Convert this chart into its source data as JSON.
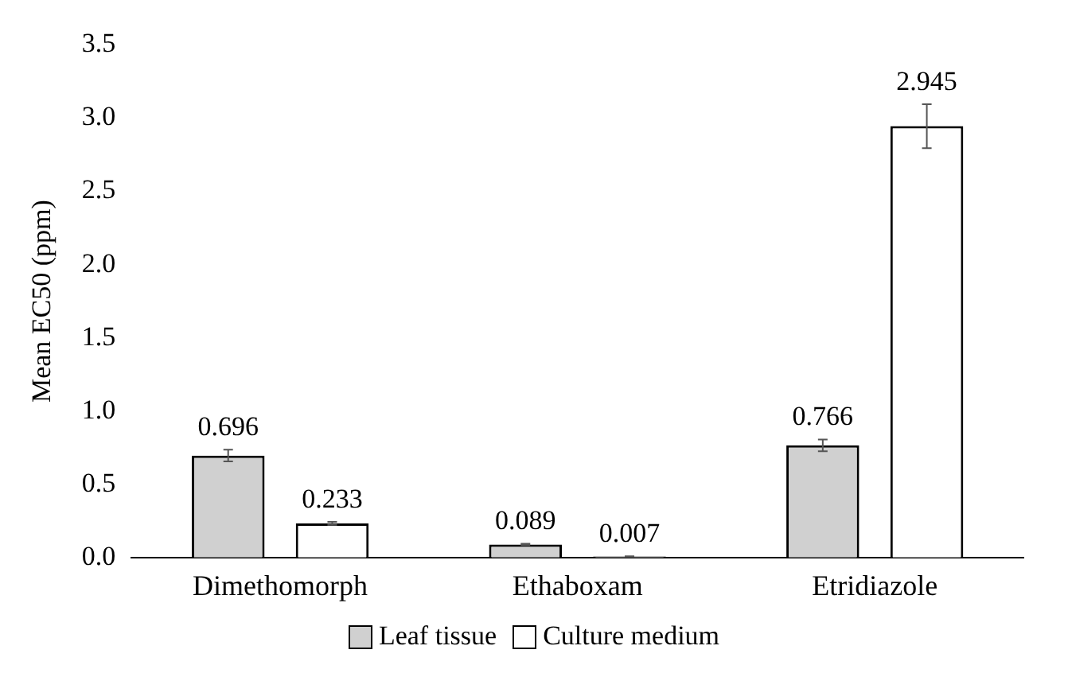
{
  "chart_data": {
    "type": "bar",
    "ylabel": "Mean EC50 (ppm)",
    "categories": [
      "Dimethomorph",
      "Ethaboxam",
      "Etridiazole"
    ],
    "series": [
      {
        "name": "Leaf tissue",
        "color": "#d0d0d0",
        "values": [
          0.696,
          0.089,
          0.766
        ],
        "errors": [
          0.04,
          0.005,
          0.04
        ]
      },
      {
        "name": "Culture medium",
        "color": "#ffffff",
        "values": [
          0.233,
          0.007,
          2.945
        ],
        "errors": [
          0.01,
          0.002,
          0.15
        ]
      }
    ],
    "ylim": [
      0,
      3.5
    ],
    "yticks": [
      {
        "value": 0,
        "label": "0.0"
      },
      {
        "value": 0.5,
        "label": "0.5"
      },
      {
        "value": 1,
        "label": "1.0"
      },
      {
        "value": 1.5,
        "label": "1.5"
      },
      {
        "value": 2,
        "label": "2.0"
      },
      {
        "value": 2.5,
        "label": "2.5"
      },
      {
        "value": 3,
        "label": "3.0"
      },
      {
        "value": 3.5,
        "label": "3.5"
      }
    ],
    "grid": false,
    "legend": "bottom",
    "data_labels": true
  }
}
